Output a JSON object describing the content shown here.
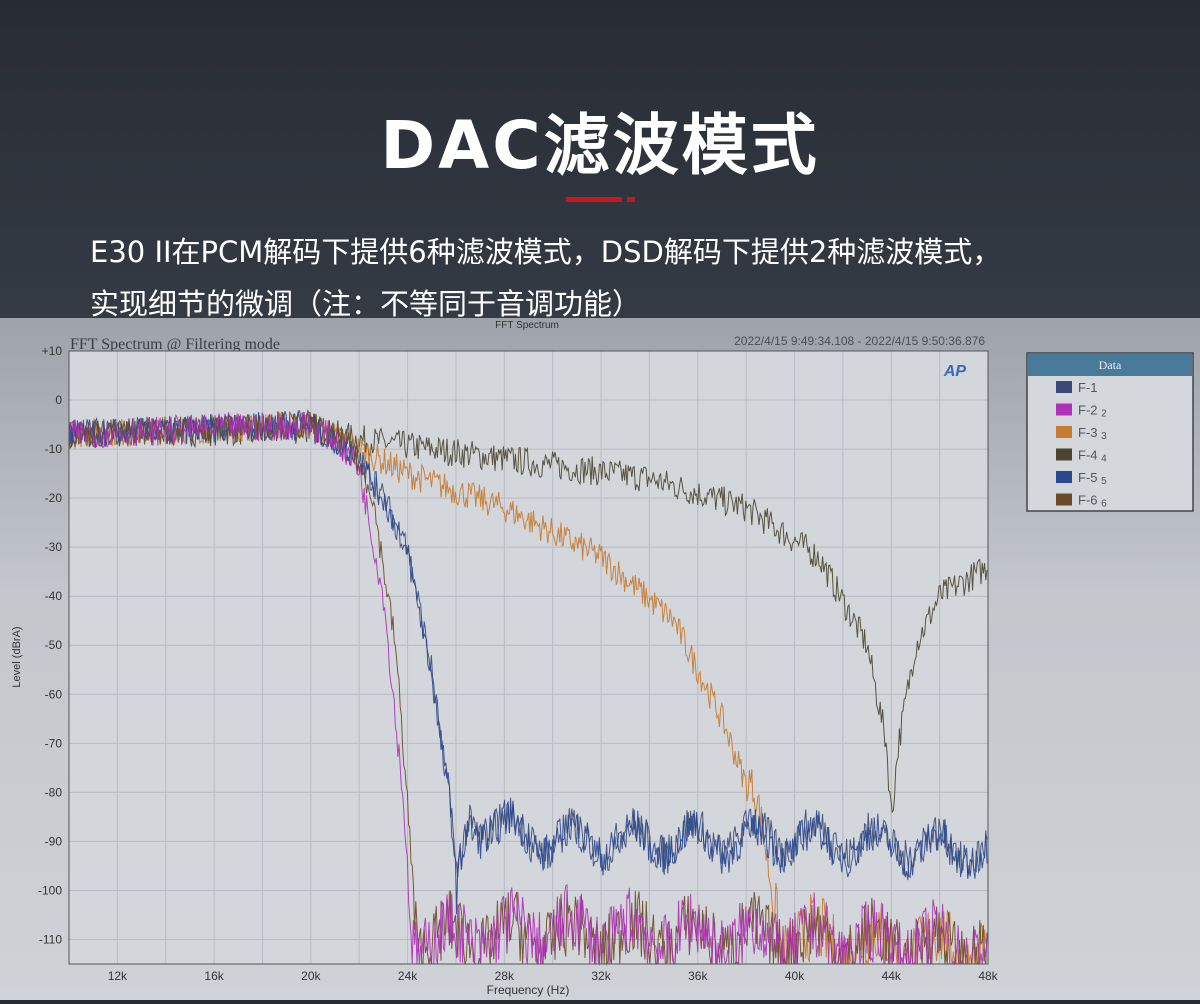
{
  "header": {
    "title": "DAC滤波模式",
    "description_line1": "E30 II在PCM解码下提供6种滤波模式，DSD解码下提供2种滤波模式，",
    "description_line2": "实现细节的微调（注：不等同于音调功能）",
    "accent_color": "#c8161d"
  },
  "chart_data": {
    "type": "line",
    "window_title": "FFT Spectrum",
    "title": "FFT Spectrum @ Filtering mode",
    "time_range": "2022/4/15 9:49:34.108 - 2022/4/15 9:50:36.876",
    "logo": "AP",
    "xlabel": "Frequency (Hz)",
    "ylabel": "Level (dBrA)",
    "xlim": [
      10000,
      48000
    ],
    "ylim": [
      -115,
      10
    ],
    "x_ticks": [
      12000,
      16000,
      20000,
      24000,
      28000,
      32000,
      36000,
      40000,
      44000,
      48000
    ],
    "x_tick_labels": [
      "12k",
      "16k",
      "20k",
      "24k",
      "28k",
      "32k",
      "36k",
      "40k",
      "44k",
      "48k"
    ],
    "y_ticks": [
      10,
      0,
      -10,
      -20,
      -30,
      -40,
      -50,
      -60,
      -70,
      -80,
      -90,
      -100,
      -110
    ],
    "y_tick_labels": [
      "+10",
      "0",
      "-10",
      "-20",
      "-30",
      "-40",
      "-50",
      "-60",
      "-70",
      "-80",
      "-90",
      "-100",
      "-110"
    ],
    "grid": true,
    "legend_title": "Data",
    "legend_placement": "right",
    "series": [
      {
        "name": "F-1",
        "suffix": "",
        "color": "#3a4a78",
        "points": [
          [
            10000,
            -7
          ],
          [
            20000,
            -5
          ],
          [
            22000,
            -12
          ],
          [
            23000,
            -20
          ],
          [
            24000,
            -30
          ],
          [
            25000,
            -55
          ],
          [
            25800,
            -85
          ],
          [
            26000,
            -100
          ],
          [
            26500,
            -85
          ],
          [
            30000,
            -90
          ],
          [
            40000,
            -89
          ],
          [
            48000,
            -92
          ]
        ]
      },
      {
        "name": "F-2",
        "suffix": "2",
        "color": "#b030b8",
        "points": [
          [
            10000,
            -7
          ],
          [
            20000,
            -5
          ],
          [
            21000,
            -8
          ],
          [
            22000,
            -14
          ],
          [
            23000,
            -40
          ],
          [
            23800,
            -80
          ],
          [
            24200,
            -110
          ],
          [
            30000,
            -108
          ],
          [
            40000,
            -110
          ],
          [
            48000,
            -112
          ]
        ]
      },
      {
        "name": "F-3",
        "suffix": "3",
        "color": "#c87a30",
        "points": [
          [
            10000,
            -7
          ],
          [
            20000,
            -5
          ],
          [
            22000,
            -10
          ],
          [
            24000,
            -15
          ],
          [
            28000,
            -22
          ],
          [
            32000,
            -32
          ],
          [
            35000,
            -45
          ],
          [
            37000,
            -65
          ],
          [
            38500,
            -85
          ],
          [
            39500,
            -110
          ],
          [
            48000,
            -112
          ]
        ]
      },
      {
        "name": "F-4",
        "suffix": "4",
        "color": "#4a4630",
        "points": [
          [
            10000,
            -7
          ],
          [
            20000,
            -6
          ],
          [
            22000,
            -8
          ],
          [
            28000,
            -12
          ],
          [
            34000,
            -16
          ],
          [
            38000,
            -22
          ],
          [
            41000,
            -32
          ],
          [
            43000,
            -50
          ],
          [
            43800,
            -70
          ],
          [
            44000,
            -85
          ],
          [
            44300,
            -70
          ],
          [
            45000,
            -50
          ],
          [
            46000,
            -40
          ],
          [
            48000,
            -34
          ]
        ]
      },
      {
        "name": "F-5",
        "suffix": "5",
        "color": "#2a4890",
        "points": [
          [
            10000,
            -7
          ],
          [
            20000,
            -5
          ],
          [
            22000,
            -12
          ],
          [
            23000,
            -20
          ],
          [
            24000,
            -31
          ],
          [
            25000,
            -56
          ],
          [
            25800,
            -86
          ],
          [
            26000,
            -101
          ],
          [
            26500,
            -86
          ],
          [
            30000,
            -90
          ],
          [
            40000,
            -90
          ],
          [
            48000,
            -92
          ]
        ]
      },
      {
        "name": "F-6",
        "suffix": "6",
        "color": "#6a4a28",
        "points": [
          [
            10000,
            -7
          ],
          [
            20000,
            -5
          ],
          [
            21500,
            -9
          ],
          [
            22500,
            -18
          ],
          [
            23500,
            -50
          ],
          [
            24200,
            -95
          ],
          [
            24400,
            -110
          ],
          [
            30000,
            -109
          ],
          [
            40000,
            -110
          ],
          [
            48000,
            -112
          ]
        ]
      }
    ]
  }
}
